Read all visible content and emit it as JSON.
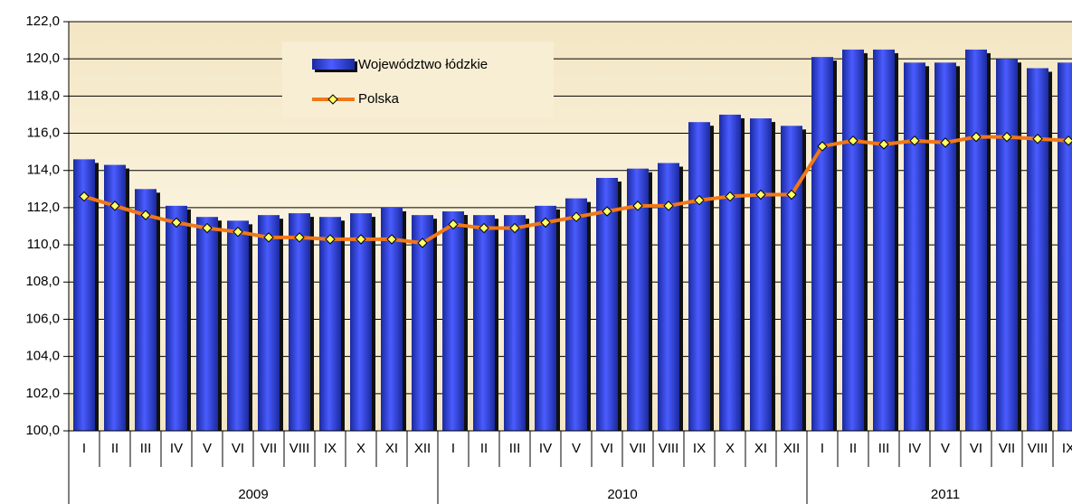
{
  "chart_data": {
    "type": "bar-line",
    "categories": [
      "I",
      "II",
      "III",
      "IV",
      "V",
      "VI",
      "VII",
      "VIII",
      "IX",
      "X",
      "XI",
      "XII",
      "I",
      "II",
      "III",
      "IV",
      "V",
      "VI",
      "VII",
      "VIII",
      "IX",
      "X",
      "XI",
      "XII",
      "I",
      "II",
      "III",
      "IV",
      "V",
      "VI",
      "VII",
      "VIII",
      "IX"
    ],
    "groups": [
      "2009",
      "2010",
      "2011"
    ],
    "series": [
      {
        "name": "Województwo łódzkie",
        "type": "bar",
        "color": "#2a3fe0",
        "values": [
          114.6,
          114.3,
          113.0,
          112.1,
          111.5,
          111.3,
          111.6,
          111.7,
          111.5,
          111.7,
          112.0,
          111.6,
          111.8,
          111.6,
          111.6,
          112.1,
          112.5,
          113.6,
          114.1,
          114.4,
          116.6,
          117.0,
          116.8,
          116.4,
          120.1,
          120.5,
          120.5,
          119.8,
          119.8,
          120.5,
          120.0,
          119.5,
          119.8
        ]
      },
      {
        "name": "Polska",
        "type": "line",
        "color": "#f07818",
        "values": [
          112.6,
          112.1,
          111.6,
          111.2,
          110.9,
          110.7,
          110.4,
          110.4,
          110.3,
          110.3,
          110.3,
          110.1,
          111.1,
          110.9,
          110.9,
          111.2,
          111.5,
          111.8,
          112.1,
          112.1,
          112.4,
          112.6,
          112.7,
          112.7,
          115.3,
          115.6,
          115.4,
          115.6,
          115.5,
          115.8,
          115.8,
          115.7,
          115.6
        ]
      }
    ],
    "ylim": [
      100,
      122
    ],
    "yticks": [
      {
        "value": 100,
        "label": "100,0"
      },
      {
        "value": 102,
        "label": "102,0"
      },
      {
        "value": 104,
        "label": "104,0"
      },
      {
        "value": 106,
        "label": "106,0"
      },
      {
        "value": 108,
        "label": "108,0"
      },
      {
        "value": 110,
        "label": "110,0"
      },
      {
        "value": 112,
        "label": "112,0"
      },
      {
        "value": 114,
        "label": "114,0"
      },
      {
        "value": 116,
        "label": "116,0"
      },
      {
        "value": 118,
        "label": "118,0"
      },
      {
        "value": 120,
        "label": "120,0"
      },
      {
        "value": 122,
        "label": "122,0"
      }
    ],
    "grid": true
  }
}
